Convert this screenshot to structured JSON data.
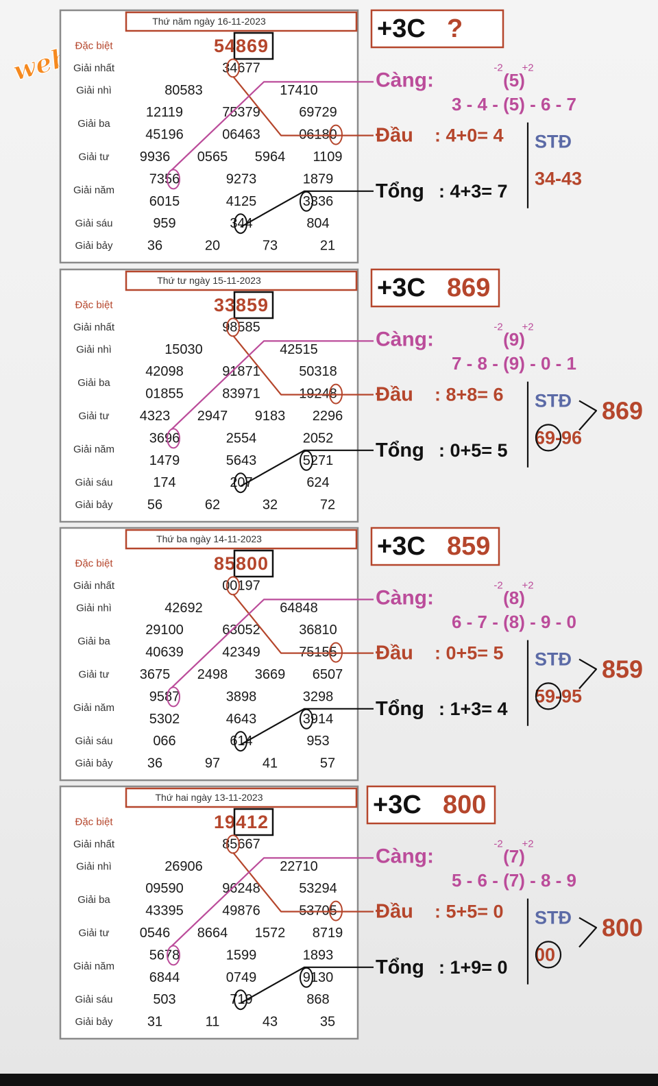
{
  "watermark": "webxoso.net",
  "colors": {
    "red": "#b5462c",
    "purple": "#bb4c9a",
    "blue": "#5b6aa6",
    "black": "#111111",
    "orange": "#f5891f"
  },
  "rowLabels": [
    "Đặc biệt",
    "Giải nhất",
    "Giải nhì",
    "Giải ba",
    "Giải tư",
    "Giải năm",
    "Giải sáu",
    "Giải bảy"
  ],
  "labels": {
    "cang": "Càng:",
    "dau": "Đầu",
    "tong": "Tổng",
    "std": "STĐ",
    "minus2": "-2",
    "plus2": "+2"
  },
  "days": [
    {
      "date": "Thứ năm ngày 16-11-2023",
      "special": "54869",
      "first": "34677",
      "second": [
        "80583",
        "17410"
      ],
      "third": [
        "12119",
        "75379",
        "69729",
        "45196",
        "06463",
        "06180"
      ],
      "fourth": [
        "9936",
        "0565",
        "5964",
        "1109"
      ],
      "fifth": [
        "7356",
        "9273",
        "1879",
        "6015",
        "4125",
        "3336"
      ],
      "sixth": [
        "959",
        "344",
        "804"
      ],
      "seventh": [
        "36",
        "20",
        "73",
        "21"
      ],
      "title": "+3C",
      "result": "?",
      "cangCenter": "(5)",
      "seq": "3 - 4 - (5) - 6 - 7",
      "dau": ": 4+0= 4",
      "tong": ": 4+3= 7",
      "stdNums": "34-43",
      "stdResult": ""
    },
    {
      "date": "Thứ tư ngày 15-11-2023",
      "special": "33859",
      "first": "98585",
      "second": [
        "15030",
        "42515"
      ],
      "third": [
        "42098",
        "91871",
        "50318",
        "01855",
        "83971",
        "19248"
      ],
      "fourth": [
        "4323",
        "2947",
        "9183",
        "2296"
      ],
      "fifth": [
        "3696",
        "2554",
        "2052",
        "1479",
        "5643",
        "5271"
      ],
      "sixth": [
        "174",
        "207",
        "624"
      ],
      "seventh": [
        "56",
        "62",
        "32",
        "72"
      ],
      "title": "+3C",
      "result": "869",
      "cangCenter": "(9)",
      "seq": "7 - 8 - (9) - 0 - 1",
      "dau": ": 8+8= 6",
      "tong": ": 0+5= 5",
      "stdNums": "69-96",
      "stdResult": "869"
    },
    {
      "date": "Thứ ba ngày 14-11-2023",
      "special": "85800",
      "first": "00197",
      "second": [
        "42692",
        "64848"
      ],
      "third": [
        "29100",
        "63052",
        "36810",
        "40639",
        "42349",
        "75155"
      ],
      "fourth": [
        "3675",
        "2498",
        "3669",
        "6507"
      ],
      "fifth": [
        "9587",
        "3898",
        "3298",
        "5302",
        "4643",
        "3914"
      ],
      "sixth": [
        "066",
        "614",
        "953"
      ],
      "seventh": [
        "36",
        "97",
        "41",
        "57"
      ],
      "title": "+3C",
      "result": "859",
      "cangCenter": "(8)",
      "seq": "6 - 7 - (8) - 9 - 0",
      "dau": ": 0+5= 5",
      "tong": ": 1+3= 4",
      "stdNums": "59-95",
      "stdResult": "859"
    },
    {
      "date": "Thứ hai ngày 13-11-2023",
      "special": "19412",
      "first": "85667",
      "second": [
        "26906",
        "22710"
      ],
      "third": [
        "09590",
        "96248",
        "53294",
        "43395",
        "49876",
        "53705"
      ],
      "fourth": [
        "0546",
        "8664",
        "1572",
        "8719"
      ],
      "fifth": [
        "5678",
        "1599",
        "1893",
        "6844",
        "0749",
        "9130"
      ],
      "sixth": [
        "503",
        "719",
        "868"
      ],
      "seventh": [
        "31",
        "11",
        "43",
        "35"
      ],
      "title": "+3C",
      "result": "800",
      "cangCenter": "(7)",
      "seq": "5 - 6 - (7) - 8 - 9",
      "dau": ": 5+5= 0",
      "tong": ": 1+9= 0",
      "stdNums": "00",
      "stdResult": "800"
    }
  ]
}
